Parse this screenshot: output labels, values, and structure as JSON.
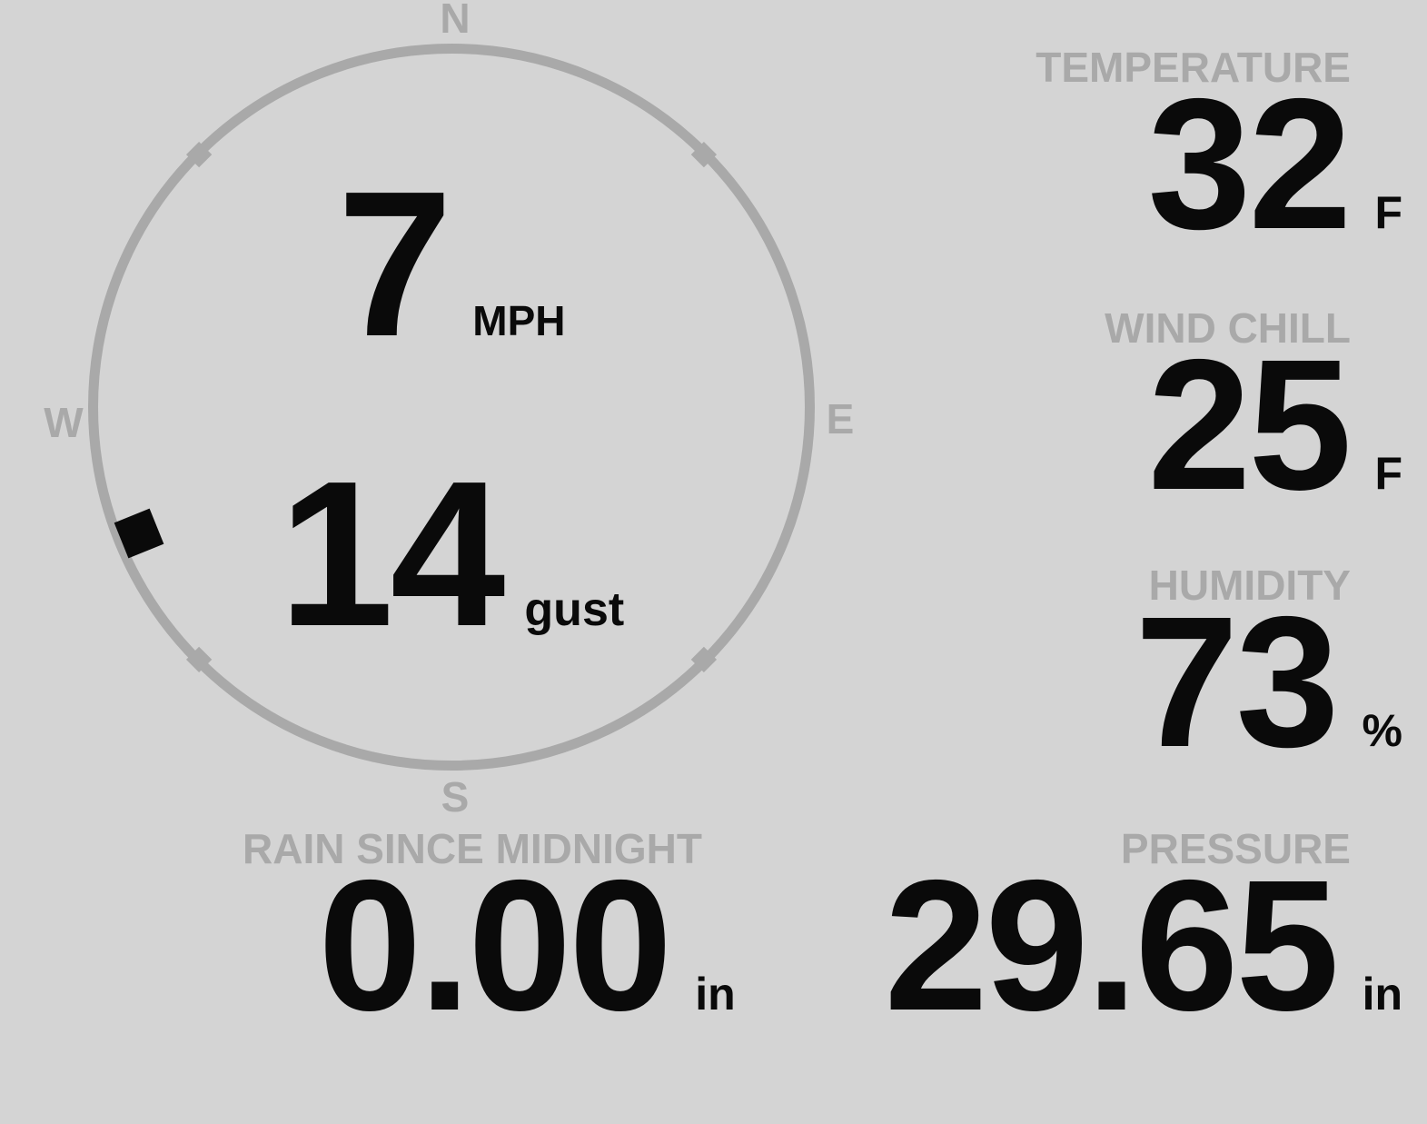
{
  "colors": {
    "background": "#d4d4d4",
    "accent_gray": "#a9a9a9",
    "text_black": "#0a0a0a"
  },
  "compass": {
    "cardinals": {
      "north": "N",
      "east": "E",
      "south": "S",
      "west": "W"
    },
    "wind_speed": {
      "value": "7",
      "unit": "MPH"
    },
    "wind_gust": {
      "value": "14",
      "unit": "gust"
    },
    "wind_direction_deg": 248
  },
  "metrics": {
    "temperature": {
      "label": "TEMPERATURE",
      "value": "32",
      "unit": "F"
    },
    "wind_chill": {
      "label": "WIND CHILL",
      "value": "25",
      "unit": "F"
    },
    "humidity": {
      "label": "HUMIDITY",
      "value": "73",
      "unit": "%"
    },
    "rain": {
      "label": "RAIN SINCE MIDNIGHT",
      "value": "0.00",
      "unit": "in"
    },
    "pressure": {
      "label": "PRESSURE",
      "value": "29.65",
      "unit": "in"
    }
  }
}
